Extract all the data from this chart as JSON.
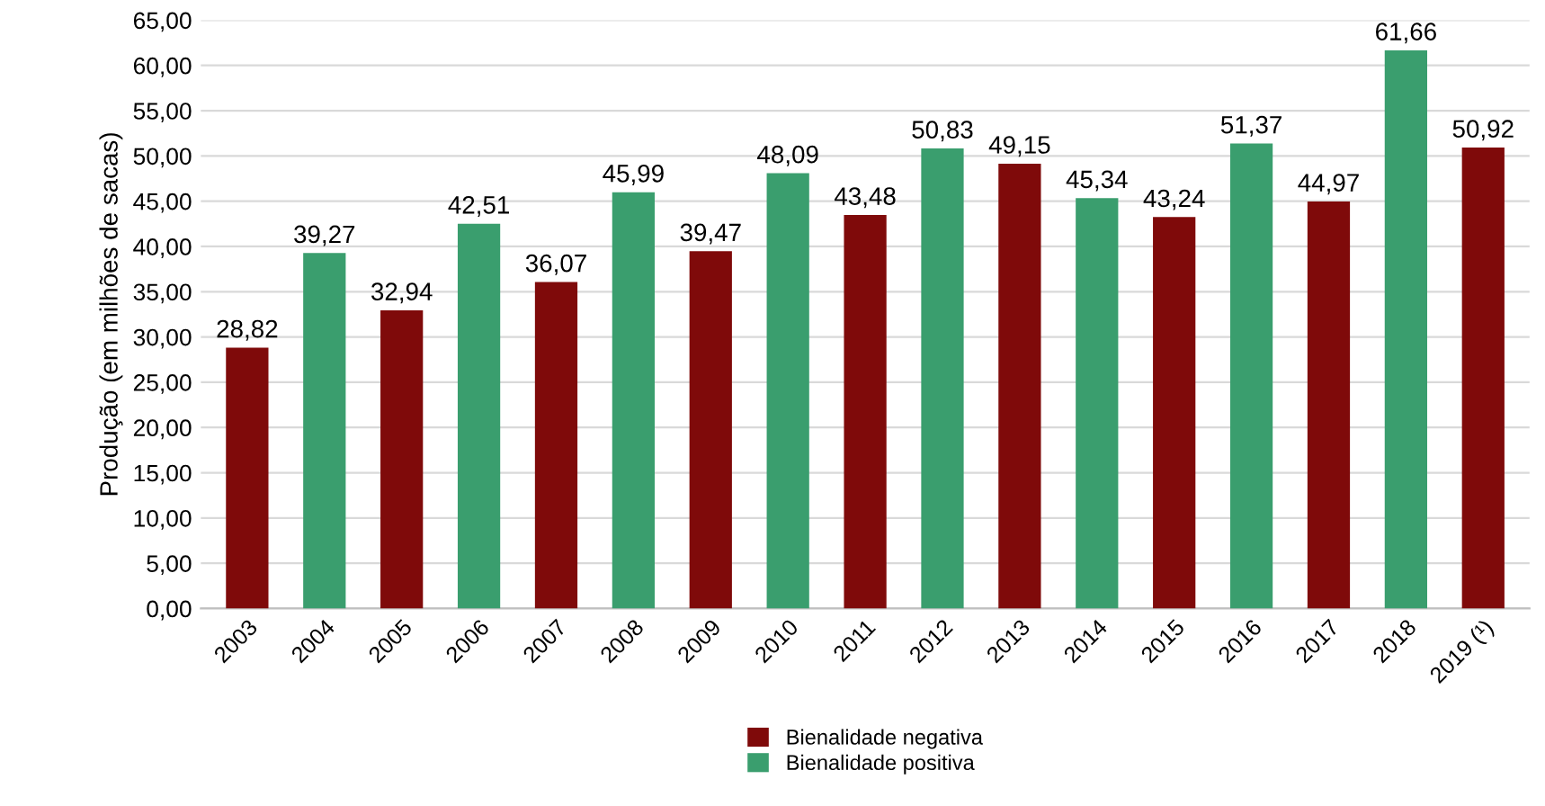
{
  "chart_data": {
    "type": "bar",
    "ylabel": "Produção (em milhões de sacas)",
    "categories": [
      "2003",
      "2004",
      "2005",
      "2006",
      "2007",
      "2008",
      "2009",
      "2010",
      "2011",
      "2012",
      "2013",
      "2014",
      "2015",
      "2016",
      "2017",
      "2018",
      "2019 (¹)"
    ],
    "series": [
      {
        "name": "Bienalidade negativa",
        "color": "#7f0a0a",
        "values": [
          28.82,
          null,
          32.94,
          null,
          36.07,
          null,
          39.47,
          null,
          43.48,
          null,
          49.15,
          null,
          43.24,
          null,
          44.97,
          null,
          50.92
        ],
        "value_labels": [
          "28,82",
          null,
          "32,94",
          null,
          "36,07",
          null,
          "39,47",
          null,
          "43,48",
          null,
          "49,15",
          null,
          "43,24",
          null,
          "44,97",
          null,
          "50,92"
        ]
      },
      {
        "name": "Bienalidade positiva",
        "color": "#3a9e6e",
        "values": [
          null,
          39.27,
          null,
          42.51,
          null,
          45.99,
          null,
          48.09,
          null,
          50.83,
          null,
          45.34,
          null,
          51.37,
          null,
          61.66,
          null
        ],
        "value_labels": [
          null,
          "39,27",
          null,
          "42,51",
          null,
          "45,99",
          null,
          "48,09",
          null,
          "50,83",
          null,
          "45,34",
          null,
          "51,37",
          null,
          "61,66",
          null
        ]
      }
    ],
    "ylim": [
      0,
      65
    ],
    "yticks": [
      {
        "value": 0,
        "label": "0,00"
      },
      {
        "value": 5,
        "label": "5,00"
      },
      {
        "value": 10,
        "label": "10,00"
      },
      {
        "value": 15,
        "label": "15,00"
      },
      {
        "value": 20,
        "label": "20,00"
      },
      {
        "value": 25,
        "label": "25,00"
      },
      {
        "value": 30,
        "label": "30,00"
      },
      {
        "value": 35,
        "label": "35,00"
      },
      {
        "value": 40,
        "label": "40,00"
      },
      {
        "value": 45,
        "label": "45,00"
      },
      {
        "value": 50,
        "label": "50,00"
      },
      {
        "value": 55,
        "label": "55,00"
      },
      {
        "value": 60,
        "label": "60,00"
      },
      {
        "value": 65,
        "label": "65,00"
      }
    ],
    "grid": "y",
    "legend": "bottom"
  }
}
